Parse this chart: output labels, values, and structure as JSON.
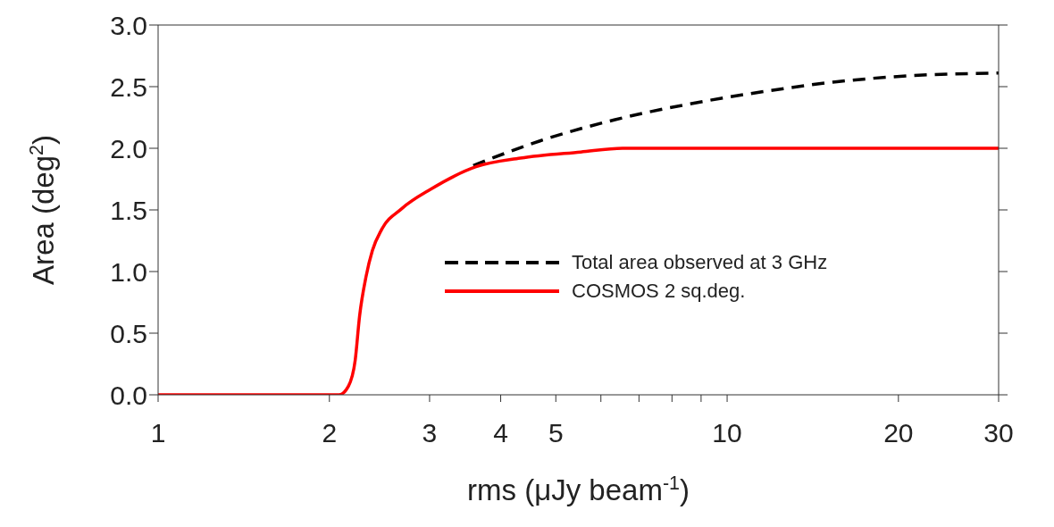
{
  "chart_data": {
    "type": "line",
    "xlabel": "rms (μJy beam$^{-1}$)",
    "ylabel": "Area (deg$^{2}$)",
    "log": "x",
    "xlim": [
      1,
      30
    ],
    "xticks": [
      1,
      2,
      3,
      4,
      5,
      {
        "value": 6,
        "label": null
      },
      {
        "value": 7,
        "label": null
      },
      {
        "value": 8,
        "label": null
      },
      {
        "value": 9,
        "label": null
      },
      10,
      20,
      30
    ],
    "ylim": [
      0,
      3
    ],
    "yticks": [
      {
        "value": 0,
        "label": "0.0"
      },
      0.5,
      {
        "value": 1,
        "label": "1.0"
      },
      1.5,
      {
        "value": 2,
        "label": "2.0"
      },
      2.5,
      {
        "value": 3,
        "label": "3.0"
      }
    ],
    "grid": false,
    "legend": "right",
    "marker": "none",
    "series": [
      {
        "name": "Total area observed at 3 GHz",
        "color": "#000000",
        "line_style": "dashed",
        "x": [
          3.58,
          4.69,
          6.33,
          8.6,
          11.6,
          15.6,
          21.2,
          30
        ],
        "values": [
          1.86,
          2.06,
          2.23,
          2.36,
          2.46,
          2.54,
          2.59,
          2.61
        ]
      },
      {
        "name": "COSMOS 2 sq.deg.",
        "color": "#ff0000",
        "line_style": "solid",
        "x": [
          1,
          2.08,
          2.16,
          2.22,
          2.26,
          2.32,
          2.38,
          2.47,
          2.68,
          3.02,
          3.62,
          4.33,
          5.53,
          6.55,
          30
        ],
        "values": [
          0,
          0,
          0.07,
          0.28,
          0.64,
          0.96,
          1.17,
          1.34,
          1.51,
          1.67,
          1.85,
          1.92,
          1.97,
          2.0,
          2.0
        ]
      }
    ]
  }
}
